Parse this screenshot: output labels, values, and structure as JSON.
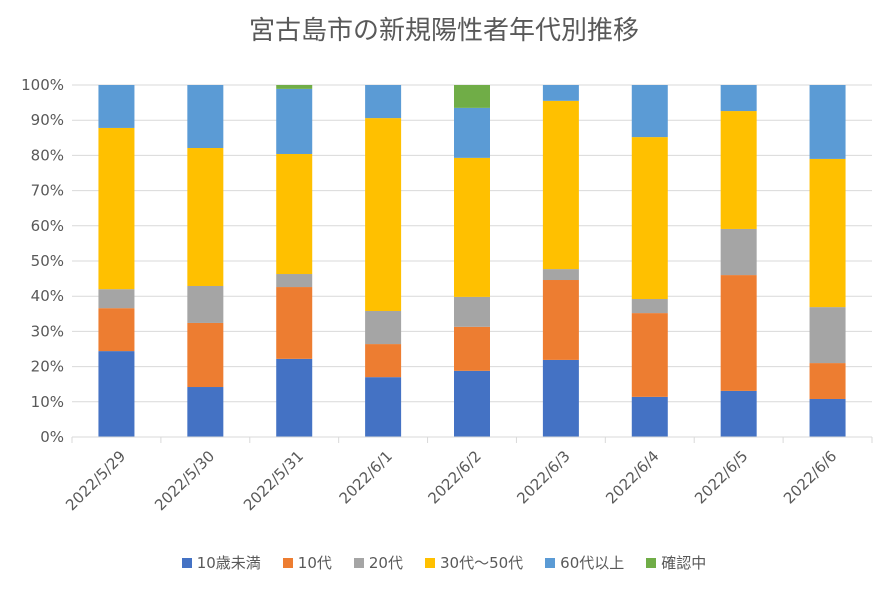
{
  "chart_data": {
    "type": "bar",
    "stacked": "percent",
    "title": "宮古島市の新規陽性者年代別推移",
    "categories": [
      "2022/5/29",
      "2022/5/30",
      "2022/5/31",
      "2022/6/1",
      "2022/6/2",
      "2022/6/3",
      "2022/6/4",
      "2022/6/5",
      "2022/6/6"
    ],
    "ylim": [
      0,
      100
    ],
    "yticks": [
      "0%",
      "10%",
      "20%",
      "30%",
      "40%",
      "50%",
      "60%",
      "70%",
      "80%",
      "90%",
      "100%"
    ],
    "grid": true,
    "legend_position": "bottom",
    "series": [
      {
        "name": "10歳未満",
        "color": "#4472C4",
        "values": [
          24.4,
          14.2,
          22.2,
          17.0,
          18.8,
          21.9,
          11.4,
          13.1,
          10.8
        ]
      },
      {
        "name": "10代",
        "color": "#ED7D31",
        "values": [
          12.2,
          18.2,
          20.4,
          9.4,
          12.5,
          22.7,
          23.8,
          32.9,
          10.2
        ]
      },
      {
        "name": "20代",
        "color": "#A5A5A5",
        "values": [
          5.4,
          10.5,
          3.7,
          9.4,
          8.5,
          3.1,
          4.0,
          13.1,
          15.9
        ]
      },
      {
        "name": "30代～50代",
        "color": "#FFC000",
        "values": [
          45.8,
          39.2,
          34.1,
          54.8,
          39.5,
          47.8,
          46.0,
          33.5,
          42.1
        ]
      },
      {
        "name": "60代以上",
        "color": "#5B9BD5",
        "values": [
          12.2,
          17.9,
          18.5,
          9.4,
          14.2,
          4.5,
          14.8,
          7.4,
          21.0
        ]
      },
      {
        "name": "確認中",
        "color": "#70AD47",
        "values": [
          0,
          0,
          1.1,
          0,
          6.5,
          0,
          0,
          0,
          0
        ]
      }
    ]
  }
}
